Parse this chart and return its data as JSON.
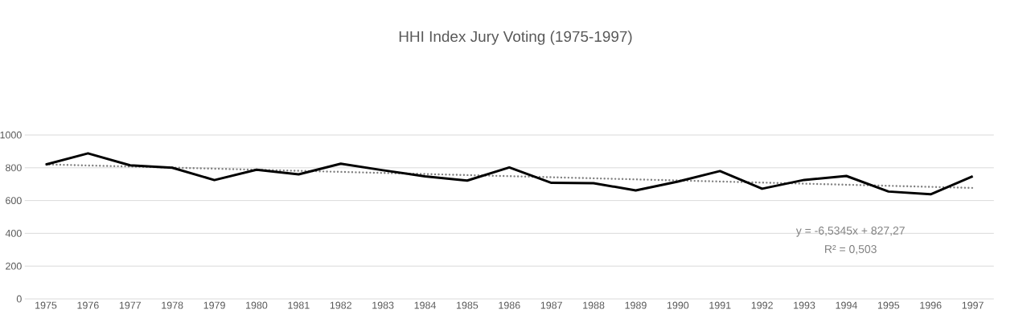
{
  "chart_data": {
    "type": "line",
    "title": "HHI Index Jury Voting (1975-1997)",
    "categories": [
      "1975",
      "1976",
      "1977",
      "1978",
      "1979",
      "1980",
      "1981",
      "1982",
      "1983",
      "1984",
      "1985",
      "1986",
      "1987",
      "1988",
      "1989",
      "1990",
      "1991",
      "1992",
      "1993",
      "1994",
      "1995",
      "1996",
      "1997"
    ],
    "series": [
      {
        "color": "#000000",
        "line_style": "solid",
        "values": [
          820,
          888,
          815,
          800,
          725,
          788,
          760,
          825,
          785,
          748,
          722,
          802,
          708,
          706,
          662,
          716,
          780,
          672,
          726,
          750,
          655,
          638,
          748
        ]
      },
      {
        "color": "#7f7f7f",
        "line_style": "dotted",
        "values": [
          820.7,
          null,
          null,
          null,
          null,
          null,
          null,
          null,
          null,
          null,
          null,
          null,
          null,
          null,
          null,
          null,
          null,
          null,
          null,
          null,
          null,
          null,
          677.0
        ]
      }
    ],
    "ylim": [
      0,
      1000
    ],
    "yticks": [
      0,
      200,
      400,
      600,
      800,
      1000
    ],
    "grid": "y",
    "annotations": [
      "y = -6,5345x + 827,27",
      "R² = 0,503"
    ]
  }
}
